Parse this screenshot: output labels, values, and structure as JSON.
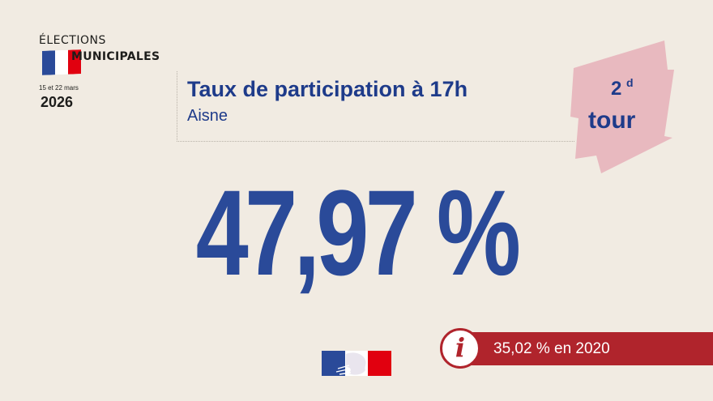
{
  "logo": {
    "line1": "ÉLECTIONS",
    "line2": "MUNICIPALES",
    "dates": "15 et 22 mars",
    "year": "2026",
    "flag_colors": [
      "#2a4a99",
      "#ffffff",
      "#e1000f"
    ]
  },
  "header": {
    "title": "Taux de participation à 17h",
    "subtitle": "Aisne"
  },
  "round": {
    "number": "2",
    "superscript": "d",
    "word": "tour",
    "bg_color": "#e8b9bf"
  },
  "main": {
    "value": "47,97 %"
  },
  "info": {
    "icon": "info-icon",
    "text": "35,02 % en 2020",
    "color": "#b0242c"
  },
  "footer_logo": "marianne-republique-icon",
  "colors": {
    "background": "#f1ebe2",
    "primary_blue": "#1e3b8a",
    "value_blue": "#2a4a99"
  }
}
